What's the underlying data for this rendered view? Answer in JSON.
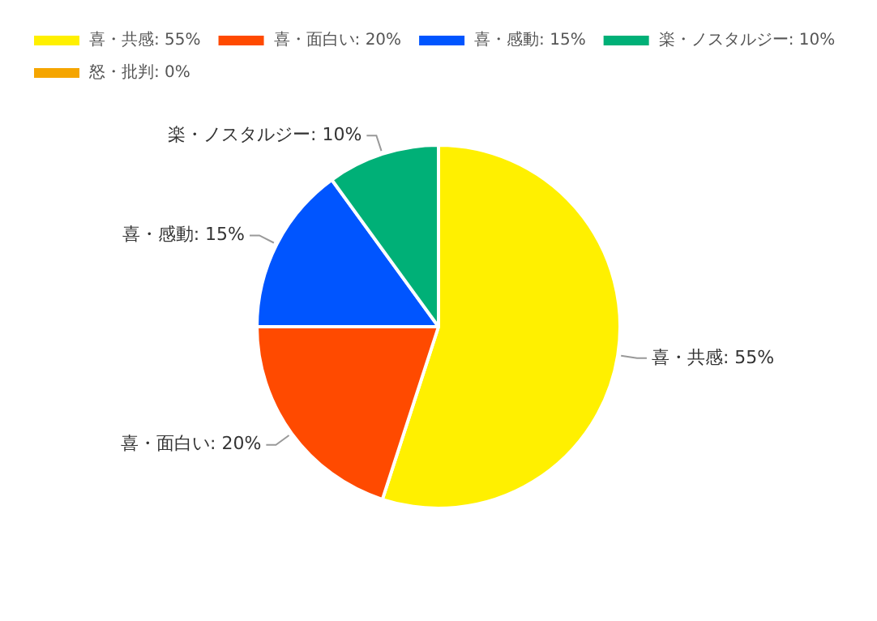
{
  "chart_data": {
    "type": "pie",
    "categories": [
      "喜・共感",
      "喜・面白い",
      "喜・感動",
      "楽・ノスタルジー",
      "怒・批判"
    ],
    "values": [
      55,
      20,
      15,
      10,
      0
    ],
    "value_labels": [
      "55%",
      "20%",
      "15%",
      "10%",
      "0%"
    ],
    "colors": [
      "#fff000",
      "#ff4a00",
      "#0055ff",
      "#00b077",
      "#f5a500"
    ],
    "legend": "top"
  }
}
